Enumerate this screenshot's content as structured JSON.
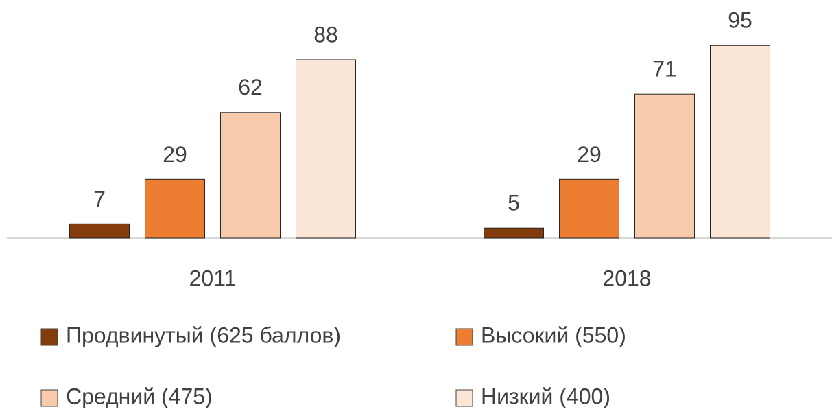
{
  "chart_data": {
    "type": "bar",
    "categories": [
      "2011",
      "2018"
    ],
    "series": [
      {
        "name": "Продвинутый (625 баллов)",
        "color": "#843c0c",
        "values": [
          7,
          5
        ]
      },
      {
        "name": "Высокий (550)",
        "color": "#ed7d31",
        "values": [
          29,
          29
        ]
      },
      {
        "name": "Средний (475)",
        "color": "#f8cbad",
        "values": [
          62,
          71
        ]
      },
      {
        "name": "Низкий (400)",
        "color": "#fbe5d6",
        "values": [
          88,
          95
        ]
      }
    ]
  }
}
